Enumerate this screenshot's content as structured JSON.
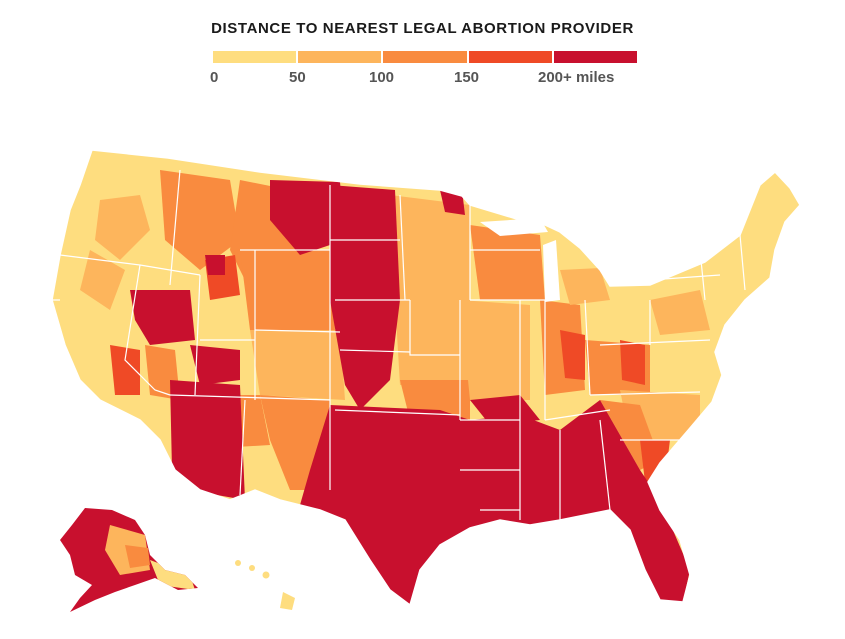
{
  "legend": {
    "title": "DISTANCE TO NEAREST LEGAL ABORTION PROVIDER",
    "ticks": [
      "0",
      "50",
      "100",
      "150",
      "200+ miles"
    ],
    "colors": [
      "#fedd7f",
      "#fdb55c",
      "#f98b3f",
      "#ef4a26",
      "#c8102e"
    ]
  },
  "colors": {
    "border": "#ffffff",
    "background": "#ffffff"
  }
}
